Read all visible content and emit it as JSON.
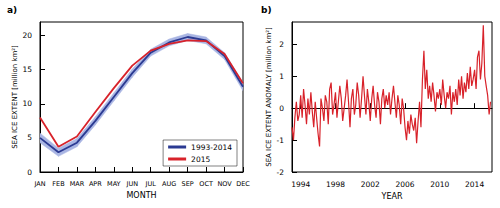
{
  "chart_data": [
    {
      "type": "line",
      "title": "a)",
      "x_label": "MONTH",
      "y_label": "SEA ICE EXTENT [million km²]",
      "categories": [
        "JAN",
        "FEB",
        "MAR",
        "APR",
        "MAY",
        "JUN",
        "JUL",
        "AUG",
        "SEP",
        "OCT",
        "NOV",
        "DEC"
      ],
      "series": [
        {
          "name": "1993-2014",
          "color": "#2b3a92",
          "values": [
            5.0,
            2.9,
            4.3,
            7.5,
            11.0,
            14.5,
            17.5,
            19.0,
            19.8,
            19.3,
            17.0,
            12.5
          ],
          "lower": [
            4.3,
            2.3,
            3.7,
            6.9,
            10.4,
            13.9,
            17.0,
            18.5,
            19.3,
            18.8,
            16.5,
            11.9
          ],
          "upper": [
            5.7,
            3.5,
            4.9,
            8.1,
            11.6,
            15.1,
            18.0,
            19.5,
            20.3,
            19.8,
            17.5,
            13.1
          ],
          "band_color": "#a9b5e3"
        },
        {
          "name": "2015",
          "color": "#d8222a",
          "values": [
            8.0,
            3.7,
            5.2,
            8.8,
            12.3,
            15.6,
            17.8,
            18.8,
            19.3,
            19.2,
            17.3,
            13.0
          ]
        }
      ],
      "ylim": [
        0,
        22
      ],
      "yticks": [
        0,
        5,
        10,
        15,
        20
      ],
      "grid": false,
      "legend": "lower right"
    },
    {
      "type": "line",
      "title": "b)",
      "x_label": "YEAR",
      "y_label": "SEA ICE EXTENT ANOMALY [million km²]",
      "x": [
        1993,
        1993.17,
        1993.33,
        1993.5,
        1993.67,
        1993.83,
        1994,
        1994.17,
        1994.33,
        1994.5,
        1994.67,
        1994.83,
        1995,
        1995.17,
        1995.33,
        1995.5,
        1995.67,
        1995.83,
        1996,
        1996.17,
        1996.33,
        1996.5,
        1996.67,
        1996.83,
        1997,
        1997.17,
        1997.33,
        1997.5,
        1997.67,
        1997.83,
        1998,
        1998.17,
        1998.33,
        1998.5,
        1998.67,
        1998.83,
        1999,
        1999.17,
        1999.33,
        1999.5,
        1999.67,
        1999.83,
        2000,
        2000.17,
        2000.33,
        2000.5,
        2000.67,
        2000.83,
        2001,
        2001.17,
        2001.33,
        2001.5,
        2001.67,
        2001.83,
        2002,
        2002.17,
        2002.33,
        2002.5,
        2002.67,
        2002.83,
        2003,
        2003.17,
        2003.33,
        2003.5,
        2003.67,
        2003.83,
        2004,
        2004.17,
        2004.33,
        2004.5,
        2004.67,
        2004.83,
        2005,
        2005.17,
        2005.33,
        2005.5,
        2005.67,
        2005.83,
        2006,
        2006.17,
        2006.33,
        2006.5,
        2006.67,
        2006.83,
        2007,
        2007.17,
        2007.33,
        2007.5,
        2007.67,
        2007.83,
        2008,
        2008.17,
        2008.33,
        2008.5,
        2008.67,
        2008.83,
        2009,
        2009.17,
        2009.33,
        2009.5,
        2009.67,
        2009.83,
        2010,
        2010.17,
        2010.33,
        2010.5,
        2010.67,
        2010.83,
        2011,
        2011.17,
        2011.33,
        2011.5,
        2011.67,
        2011.83,
        2012,
        2012.17,
        2012.33,
        2012.5,
        2012.67,
        2012.83,
        2013,
        2013.17,
        2013.33,
        2013.5,
        2013.67,
        2013.83,
        2014,
        2014.17,
        2014.33,
        2014.5,
        2014.67,
        2014.83,
        2015,
        2015.17,
        2015.33,
        2015.5,
        2015.67,
        2015.83
      ],
      "values": [
        -0.6,
        -1.0,
        -0.3,
        0.2,
        -0.4,
        -0.2,
        0.4,
        -0.3,
        0.6,
        0.1,
        -0.5,
        0.3,
        -0.2,
        0.5,
        -0.1,
        -0.6,
        0.2,
        -0.3,
        -0.8,
        -1.2,
        0.3,
        0.0,
        -0.4,
        0.4,
        0.2,
        -0.5,
        0.6,
        0.8,
        -0.2,
        0.1,
        0.5,
        -0.3,
        0.2,
        0.7,
        0.3,
        -0.4,
        0.0,
        0.4,
        0.9,
        0.2,
        -0.6,
        0.3,
        0.6,
        -0.2,
        0.1,
        0.8,
        0.4,
        -0.3,
        0.3,
        1.0,
        0.4,
        -0.2,
        0.6,
        0.2,
        -0.4,
        0.3,
        0.7,
        0.1,
        -0.3,
        0.5,
        0.2,
        -0.5,
        0.3,
        0.6,
        0.0,
        0.4,
        0.1,
        0.5,
        -0.2,
        0.3,
        0.7,
        0.2,
        -0.3,
        0.4,
        0.1,
        -0.5,
        0.3,
        0.0,
        -0.6,
        -1.0,
        -0.4,
        -0.8,
        -0.2,
        -0.5,
        -0.7,
        -0.3,
        -1.1,
        -0.4,
        0.2,
        -0.6,
        0.9,
        1.8,
        0.6,
        1.2,
        0.3,
        0.7,
        0.2,
        0.8,
        0.4,
        -0.1,
        0.5,
        0.3,
        0.6,
        0.1,
        0.9,
        0.4,
        0.0,
        0.5,
        0.3,
        0.7,
        -0.2,
        0.5,
        0.2,
        0.6,
        0.1,
        0.9,
        0.4,
        1.0,
        0.3,
        0.8,
        0.5,
        1.1,
        0.6,
        1.3,
        0.7,
        0.9,
        1.2,
        0.6,
        1.6,
        1.8,
        0.9,
        1.4,
        2.6,
        1.0,
        0.7,
        0.4,
        -0.2,
        0.2
      ],
      "color": "#d8222a",
      "xlim": [
        1993,
        2016
      ],
      "xticks": [
        1994,
        1998,
        2002,
        2006,
        2010,
        2014
      ],
      "ylim": [
        -2,
        2.7
      ],
      "yticks": [
        -2,
        -1,
        0,
        1,
        2
      ],
      "grid": false
    }
  ]
}
